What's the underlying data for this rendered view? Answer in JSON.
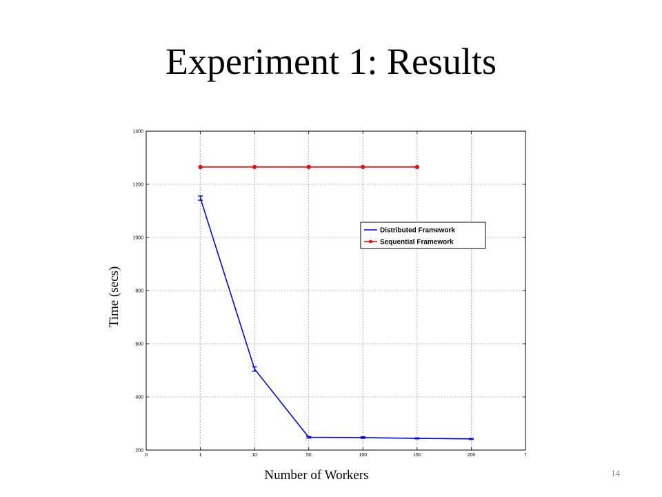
{
  "slide": {
    "title": "Experiment 1: Results",
    "page_number": "14"
  },
  "chart_data": {
    "type": "line",
    "xlabel": "Number of Workers",
    "ylabel": "Time (secs)",
    "x_tick_labels": [
      "0",
      "1",
      "10",
      "50",
      "100",
      "150",
      "200",
      "7"
    ],
    "y_ticks": [
      200,
      400,
      600,
      800,
      1000,
      1200,
      1400
    ],
    "ylim": [
      200,
      1400
    ],
    "grid": true,
    "legend_position": "upper-right",
    "series": [
      {
        "name": "Distributed Framework",
        "color": "#0000ff",
        "marker": "error-bar",
        "x": [
          "1",
          "10",
          "50",
          "100",
          "150",
          "200"
        ],
        "values": [
          1148,
          505,
          248,
          247,
          244,
          242
        ],
        "errors": [
          8,
          8,
          3,
          3,
          2,
          2
        ]
      },
      {
        "name": "Sequential Framework",
        "color": "#ff0000",
        "marker": "dot",
        "x": [
          "1",
          "10",
          "50",
          "100",
          "150"
        ],
        "values": [
          1265,
          1265,
          1265,
          1265,
          1265
        ]
      }
    ]
  }
}
